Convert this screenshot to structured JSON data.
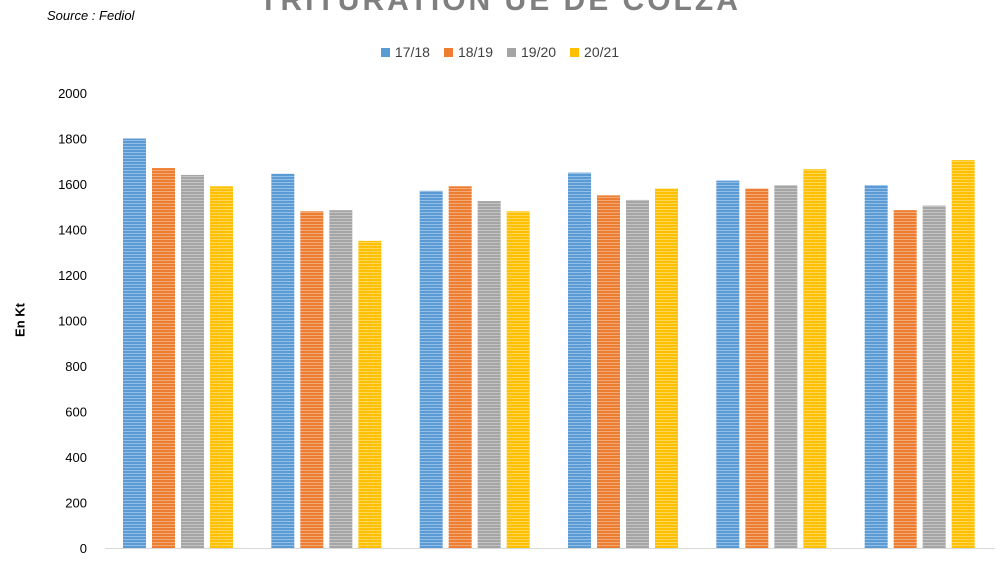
{
  "source": "Source : Fediol",
  "chart_data": {
    "type": "bar",
    "title": "TRITURATION UE DE COLZA",
    "ylabel": "En Kt",
    "xlabel": "",
    "ylim": [
      0,
      2000
    ],
    "yticks": [
      0,
      200,
      400,
      600,
      800,
      1000,
      1200,
      1400,
      1600,
      1800,
      2000
    ],
    "grid": false,
    "legend": "top-center",
    "categories": [
      "",
      "",
      "",
      "",
      "",
      ""
    ],
    "series": [
      {
        "name": "17/18",
        "color": "#5b9bd5",
        "values": [
          1800,
          1645,
          1570,
          1650,
          1615,
          1595
        ]
      },
      {
        "name": "18/19",
        "color": "#ed7d31",
        "values": [
          1670,
          1480,
          1590,
          1550,
          1580,
          1485
        ]
      },
      {
        "name": "19/20",
        "color": "#a5a5a5",
        "values": [
          1640,
          1485,
          1525,
          1530,
          1595,
          1505
        ]
      },
      {
        "name": "20/21",
        "color": "#ffc000",
        "values": [
          1590,
          1350,
          1480,
          1580,
          1665,
          1705
        ]
      }
    ]
  }
}
